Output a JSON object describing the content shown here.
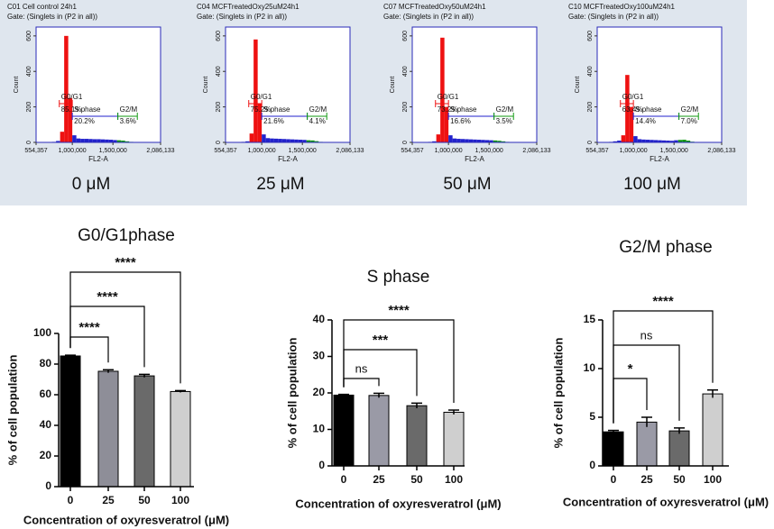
{
  "chart_data": [
    {
      "type": "histogram",
      "title": "C01 Cell control 24h1",
      "subtitle": "Gate: (Singlets in (P2 in all))",
      "caption": "0 μM",
      "xlabel": "FL2-A",
      "ylabel": "Count",
      "xlim": [
        554357,
        2086133
      ],
      "xticks": [
        {
          "value": 554357,
          "label": "554,357"
        },
        {
          "value": 1000000,
          "label": "1,000,000"
        },
        {
          "value": 1500000,
          "label": "1,500,000"
        },
        {
          "value": 2086133,
          "label": "2,086,133"
        }
      ],
      "ylim": [
        0,
        650
      ],
      "yticks": [
        0,
        200,
        400,
        600
      ],
      "bins": [
        700000,
        750000,
        800000,
        850000,
        900000,
        950000,
        1000000,
        1050000,
        1100000,
        1150000,
        1200000,
        1250000,
        1300000,
        1350000,
        1400000,
        1450000,
        1500000,
        1550000,
        1600000,
        1650000,
        1700000,
        1750000,
        1800000,
        1850000,
        1900000,
        1950000,
        2000000,
        2050000
      ],
      "counts": [
        2,
        3,
        8,
        60,
        600,
        250,
        40,
        22,
        20,
        20,
        19,
        18,
        18,
        17,
        16,
        15,
        13,
        12,
        10,
        6,
        3,
        1,
        0,
        0,
        0,
        0,
        0
      ],
      "color": "#2222cc",
      "regions": [
        {
          "name": "G0/G1",
          "label": "85.1%",
          "range": [
            840000,
            1000000
          ],
          "color": "#ee1111"
        },
        {
          "name": "S phase",
          "label": "20.2%",
          "range": [
            1000000,
            1560000
          ],
          "color": "#2222cc"
        },
        {
          "name": "G2/M",
          "label": "3.6%",
          "range": [
            1560000,
            1800000
          ],
          "color": "#119911"
        }
      ]
    },
    {
      "type": "histogram",
      "title": "C04 MCFTreatedOxy25uM24h1",
      "subtitle": "Gate: (Singlets in (P2 in all))",
      "caption": "25 μM",
      "xlabel": "FL2-A",
      "ylabel": "Count",
      "xlim": [
        554357,
        2086133
      ],
      "xticks": [
        {
          "value": 554357,
          "label": "554,357"
        },
        {
          "value": 1000000,
          "label": "1,000,000"
        },
        {
          "value": 1500000,
          "label": "1,500,000"
        },
        {
          "value": 2086133,
          "label": "2,086,133"
        }
      ],
      "ylim": [
        0,
        650
      ],
      "yticks": [
        0,
        200,
        400,
        600
      ],
      "bins": [
        700000,
        750000,
        800000,
        850000,
        900000,
        950000,
        1000000,
        1050000,
        1100000,
        1150000,
        1200000,
        1250000,
        1300000,
        1350000,
        1400000,
        1450000,
        1500000,
        1550000,
        1600000,
        1650000,
        1700000,
        1750000,
        1800000,
        1850000,
        1900000,
        1950000,
        2000000,
        2050000
      ],
      "counts": [
        2,
        3,
        6,
        50,
        580,
        220,
        45,
        24,
        22,
        21,
        20,
        19,
        18,
        17,
        16,
        15,
        14,
        12,
        11,
        7,
        3,
        1,
        0,
        0,
        0,
        0,
        0
      ],
      "color": "#2222cc",
      "regions": [
        {
          "name": "G0/G1",
          "label": "75.2%",
          "range": [
            840000,
            1000000
          ],
          "color": "#ee1111"
        },
        {
          "name": "S phase",
          "label": "21.6%",
          "range": [
            1000000,
            1560000
          ],
          "color": "#2222cc"
        },
        {
          "name": "G2/M",
          "label": "4.1%",
          "range": [
            1560000,
            1800000
          ],
          "color": "#119911"
        }
      ]
    },
    {
      "type": "histogram",
      "title": "C07 MCFTreatedOxy50uM24h1",
      "subtitle": "Gate: (Singlets in (P2 in all))",
      "caption": "50 μM",
      "xlabel": "FL2-A",
      "ylabel": "Count",
      "xlim": [
        554357,
        2086133
      ],
      "xticks": [
        {
          "value": 554357,
          "label": "554,357"
        },
        {
          "value": 1000000,
          "label": "1,000,000"
        },
        {
          "value": 1500000,
          "label": "1,500,000"
        },
        {
          "value": 2086133,
          "label": "2,086,133"
        }
      ],
      "ylim": [
        0,
        650
      ],
      "yticks": [
        0,
        200,
        400,
        600
      ],
      "bins": [
        700000,
        750000,
        800000,
        850000,
        900000,
        950000,
        1000000,
        1050000,
        1100000,
        1150000,
        1200000,
        1250000,
        1300000,
        1350000,
        1400000,
        1450000,
        1500000,
        1550000,
        1600000,
        1650000,
        1700000,
        1750000,
        1800000,
        1850000,
        1900000,
        1950000,
        2000000,
        2050000
      ],
      "counts": [
        2,
        3,
        6,
        45,
        590,
        200,
        40,
        22,
        20,
        19,
        18,
        17,
        16,
        15,
        14,
        13,
        12,
        11,
        9,
        6,
        3,
        1,
        0,
        0,
        0,
        0,
        0
      ],
      "color": "#2222cc",
      "regions": [
        {
          "name": "G0/G1",
          "label": "73.2%",
          "range": [
            840000,
            1000000
          ],
          "color": "#ee1111"
        },
        {
          "name": "S phase",
          "label": "16.6%",
          "range": [
            1000000,
            1560000
          ],
          "color": "#2222cc"
        },
        {
          "name": "G2/M",
          "label": "3.5%",
          "range": [
            1560000,
            1800000
          ],
          "color": "#119911"
        }
      ]
    },
    {
      "type": "histogram",
      "title": "C10 MCFTreatedOxy100uM24h1",
      "subtitle": "Gate: (Singlets in (P2 in all))",
      "caption": "100 μM",
      "xlabel": "FL2-A",
      "ylabel": "Count",
      "xlim": [
        554357,
        2086133
      ],
      "xticks": [
        {
          "value": 554357,
          "label": "554,357"
        },
        {
          "value": 1000000,
          "label": "1,000,000"
        },
        {
          "value": 1500000,
          "label": "1,500,000"
        },
        {
          "value": 2086133,
          "label": "2,086,133"
        }
      ],
      "ylim": [
        0,
        650
      ],
      "yticks": [
        0,
        200,
        400,
        600
      ],
      "bins": [
        700000,
        750000,
        800000,
        850000,
        900000,
        950000,
        1000000,
        1050000,
        1100000,
        1150000,
        1200000,
        1250000,
        1300000,
        1350000,
        1400000,
        1450000,
        1500000,
        1550000,
        1600000,
        1650000,
        1700000,
        1750000,
        1800000,
        1850000,
        1900000,
        1950000,
        2000000,
        2050000
      ],
      "counts": [
        3,
        6,
        10,
        40,
        380,
        200,
        35,
        18,
        16,
        15,
        14,
        13,
        12,
        11,
        10,
        9,
        12,
        14,
        15,
        10,
        4,
        1,
        0,
        0,
        0,
        0,
        0
      ],
      "color": "#2222cc",
      "regions": [
        {
          "name": "G0/G1",
          "label": "63.4%",
          "range": [
            840000,
            1000000
          ],
          "color": "#ee1111"
        },
        {
          "name": "S phase",
          "label": "14.4%",
          "range": [
            1000000,
            1560000
          ],
          "color": "#2222cc"
        },
        {
          "name": "G2/M",
          "label": "7.0%",
          "range": [
            1560000,
            1800000
          ],
          "color": "#119911"
        }
      ]
    },
    {
      "type": "bar",
      "title": "G0/G1phase",
      "xlabel": "Concentration of oxyresveratrol (μM)",
      "ylabel": "% of cell population",
      "categories": [
        "0",
        "25",
        "50",
        "100"
      ],
      "values": [
        85.3,
        75.3,
        72.3,
        62.1
      ],
      "errors": [
        0.5,
        1.0,
        1.0,
        0.6
      ],
      "colors": [
        "#000000",
        "#8e8e98",
        "#6a6a6a",
        "#cfcfcf"
      ],
      "ylim": [
        0,
        100
      ],
      "yticks": [
        0,
        20,
        40,
        60,
        80,
        100
      ],
      "comparisons": [
        {
          "groups": [
            "0",
            "25"
          ],
          "label": "****"
        },
        {
          "groups": [
            "0",
            "50"
          ],
          "label": "****"
        },
        {
          "groups": [
            "0",
            "100"
          ],
          "label": "****"
        }
      ]
    },
    {
      "type": "bar",
      "title": "S phase",
      "xlabel": "Concentration of oxyresveratrol (μM)",
      "ylabel": "% of cell population",
      "categories": [
        "0",
        "25",
        "50",
        "100"
      ],
      "values": [
        19.4,
        19.3,
        16.5,
        14.7
      ],
      "errors": [
        0.2,
        0.6,
        0.7,
        0.6
      ],
      "colors": [
        "#000000",
        "#9a9aa6",
        "#6a6a6a",
        "#cfcfcf"
      ],
      "ylim": [
        0,
        40
      ],
      "yticks": [
        0,
        10,
        20,
        30,
        40
      ],
      "comparisons": [
        {
          "groups": [
            "0",
            "25"
          ],
          "label": "ns"
        },
        {
          "groups": [
            "0",
            "50"
          ],
          "label": "***"
        },
        {
          "groups": [
            "0",
            "100"
          ],
          "label": "****"
        }
      ]
    },
    {
      "type": "bar",
      "title": "G2/M phase",
      "xlabel": "Concentration of oxyresveratrol (μM)",
      "ylabel": "% of cell population",
      "categories": [
        "0",
        "25",
        "50",
        "100"
      ],
      "values": [
        3.5,
        4.5,
        3.6,
        7.4
      ],
      "errors": [
        0.15,
        0.5,
        0.3,
        0.4
      ],
      "colors": [
        "#000000",
        "#9a9aa6",
        "#6a6a6a",
        "#cfcfcf"
      ],
      "ylim": [
        0,
        15
      ],
      "yticks": [
        0,
        5,
        10,
        15
      ],
      "comparisons": [
        {
          "groups": [
            "0",
            "25"
          ],
          "label": "*"
        },
        {
          "groups": [
            "0",
            "50"
          ],
          "label": "ns"
        },
        {
          "groups": [
            "0",
            "100"
          ],
          "label": "****"
        }
      ]
    }
  ]
}
